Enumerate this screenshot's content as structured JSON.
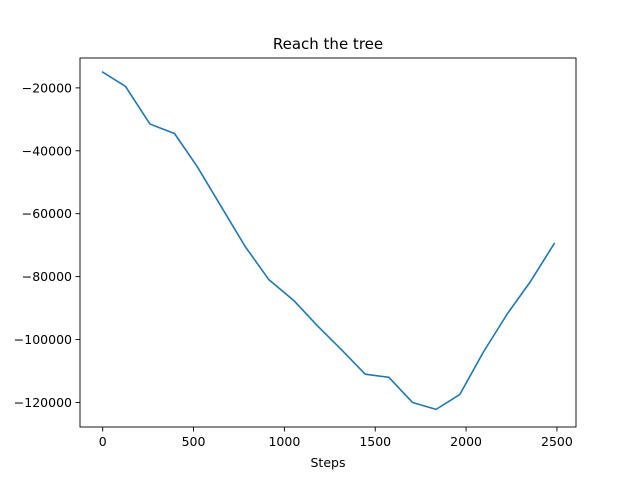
{
  "chart_data": {
    "type": "line",
    "title": "Reach the tree",
    "xlabel": "Steps",
    "ylabel": "",
    "xlim": [
      -125,
      2605
    ],
    "ylim": [
      -127800,
      -10500
    ],
    "xticks": [
      0,
      500,
      1000,
      1500,
      2000,
      2500
    ],
    "xtick_labels": [
      "0",
      "500",
      "1000",
      "1500",
      "2000",
      "2500"
    ],
    "yticks": [
      -20000,
      -40000,
      -60000,
      -80000,
      -100000,
      -120000
    ],
    "ytick_labels": [
      "−20000",
      "−40000",
      "−60000",
      "−80000",
      "−100000",
      "−120000"
    ],
    "grid": false,
    "series": [
      {
        "color": "#1f77b4",
        "x": [
          0,
          125,
          260,
          395,
          520,
          655,
          785,
          915,
          1050,
          1180,
          1310,
          1445,
          1575,
          1705,
          1835,
          1965,
          2095,
          2225,
          2355,
          2485
        ],
        "y": [
          -15000,
          -19500,
          -31500,
          -34500,
          -45000,
          -58000,
          -70500,
          -81000,
          -87500,
          -95500,
          -103000,
          -111000,
          -112000,
          -120000,
          -122200,
          -117500,
          -104000,
          -92000,
          -81500,
          -69500
        ]
      }
    ]
  }
}
